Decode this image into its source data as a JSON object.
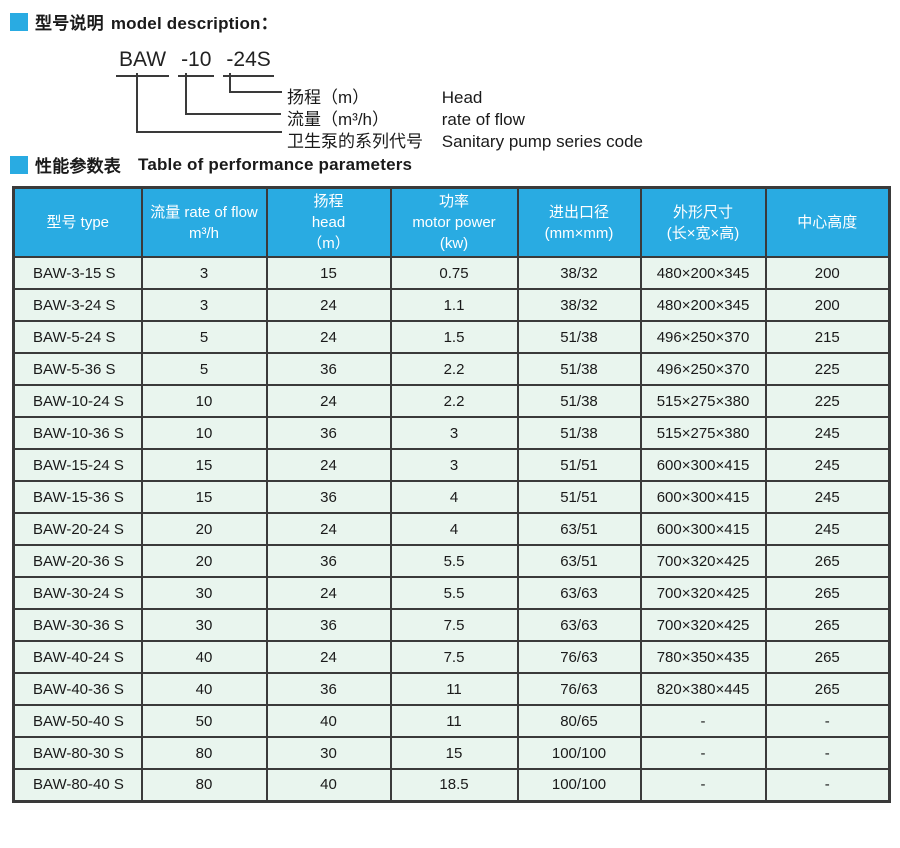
{
  "colors": {
    "accent": "#29abe2",
    "cell_bg": "#e9f5ee",
    "border": "#3a3a3a"
  },
  "section1": {
    "title_zh": "型号说明",
    "title_en": "model description：",
    "model": {
      "series": "BAW",
      "flow": "-10",
      "head": "-24S"
    },
    "legend": [
      {
        "zh": "扬程（m）",
        "en": "Head"
      },
      {
        "zh": "流量（m³/h）",
        "en": "rate of flow"
      },
      {
        "zh": "卫生泵的系列代号",
        "en": "Sanitary pump series code"
      }
    ]
  },
  "section2": {
    "title_zh": "性能参数表",
    "title_en": "Table of performance parameters"
  },
  "table": {
    "headers": [
      [
        "型号 type"
      ],
      [
        "流量 rate of flow",
        "m³/h"
      ],
      [
        "扬程",
        "head",
        "（m）"
      ],
      [
        "功率",
        "motor power",
        "(kw)"
      ],
      [
        "进出口径",
        "(mm×mm)"
      ],
      [
        "外形尺寸",
        "(长×宽×高)"
      ],
      [
        "中心高度"
      ]
    ],
    "rows": [
      [
        "BAW-3-15 S",
        "3",
        "15",
        "0.75",
        "38/32",
        "480×200×345",
        "200"
      ],
      [
        "BAW-3-24 S",
        "3",
        "24",
        "1.1",
        "38/32",
        "480×200×345",
        "200"
      ],
      [
        "BAW-5-24 S",
        "5",
        "24",
        "1.5",
        "51/38",
        "496×250×370",
        "215"
      ],
      [
        "BAW-5-36 S",
        "5",
        "36",
        "2.2",
        "51/38",
        "496×250×370",
        "225"
      ],
      [
        "BAW-10-24 S",
        "10",
        "24",
        "2.2",
        "51/38",
        "515×275×380",
        "225"
      ],
      [
        "BAW-10-36 S",
        "10",
        "36",
        "3",
        "51/38",
        "515×275×380",
        "245"
      ],
      [
        "BAW-15-24 S",
        "15",
        "24",
        "3",
        "51/51",
        "600×300×415",
        "245"
      ],
      [
        "BAW-15-36 S",
        "15",
        "36",
        "4",
        "51/51",
        "600×300×415",
        "245"
      ],
      [
        "BAW-20-24 S",
        "20",
        "24",
        "4",
        "63/51",
        "600×300×415",
        "245"
      ],
      [
        "BAW-20-36 S",
        "20",
        "36",
        "5.5",
        "63/51",
        "700×320×425",
        "265"
      ],
      [
        "BAW-30-24 S",
        "30",
        "24",
        "5.5",
        "63/63",
        "700×320×425",
        "265"
      ],
      [
        "BAW-30-36 S",
        "30",
        "36",
        "7.5",
        "63/63",
        "700×320×425",
        "265"
      ],
      [
        "BAW-40-24 S",
        "40",
        "24",
        "7.5",
        "76/63",
        "780×350×435",
        "265"
      ],
      [
        "BAW-40-36 S",
        "40",
        "36",
        "11",
        "76/63",
        "820×380×445",
        "265"
      ],
      [
        "BAW-50-40 S",
        "50",
        "40",
        "11",
        "80/65",
        "-",
        "-"
      ],
      [
        "BAW-80-30 S",
        "80",
        "30",
        "15",
        "100/100",
        "-",
        "-"
      ],
      [
        "BAW-80-40 S",
        "80",
        "40",
        "18.5",
        "100/100",
        "-",
        "-"
      ]
    ]
  }
}
